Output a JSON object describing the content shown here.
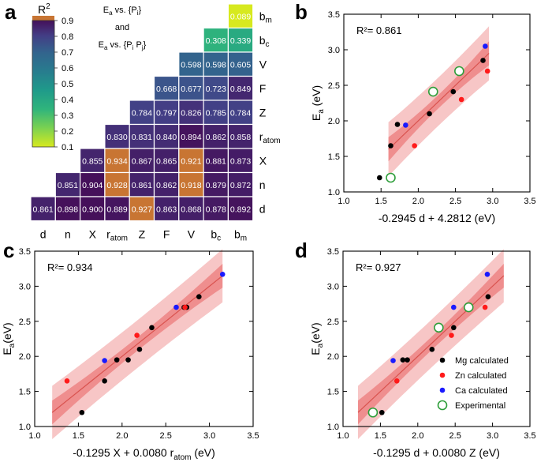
{
  "colors": {
    "heat_low": "#440154",
    "heat_mid": "#21918c",
    "heat_high": "#fde725",
    "highlight": "#c87533",
    "band_outer": "#f7c6c6",
    "band_inner": "#ef8e8e",
    "fit_line": "#d9534f",
    "mg": "#000000",
    "zn": "#ff1a1a",
    "ca": "#1a1aff",
    "exp": "#2e9e3a"
  },
  "panel_a": {
    "label": "a",
    "colorbar_title": "R",
    "colorbar_title_sup": "2",
    "colorbar_ticks": [
      "0.9",
      "0.8",
      "0.7",
      "0.6",
      "0.5",
      "0.4",
      "0.3",
      "0.2",
      "0.1"
    ],
    "legend_line1": {
      "a": "E",
      "a_sub": "a",
      "b": " vs. {P",
      "b_sub": "i",
      "c": "}"
    },
    "legend_and": "and",
    "legend_line3": {
      "a": "E",
      "a_sub": "a",
      "b": " vs. {P",
      "b_sub": "i",
      "c": " P",
      "c_sub": "j",
      "d": "}"
    },
    "chart_data": {
      "type": "heatmap",
      "title": "",
      "descriptors": [
        "d",
        "n",
        "X",
        "r_atom",
        "Z",
        "F",
        "V",
        "b_c",
        "b_m"
      ],
      "x_tick_labels": [
        {
          "t": "d"
        },
        {
          "t": "n"
        },
        {
          "t": "X"
        },
        {
          "t": "r",
          "s": "atom"
        },
        {
          "t": "Z"
        },
        {
          "t": "F"
        },
        {
          "t": "V"
        },
        {
          "t": "b",
          "s": "c"
        },
        {
          "t": "b",
          "s": "m"
        }
      ],
      "y_tick_labels": [
        {
          "t": "b",
          "s": "m"
        },
        {
          "t": "b",
          "s": "c"
        },
        {
          "t": "V"
        },
        {
          "t": "F"
        },
        {
          "t": "Z"
        },
        {
          "t": "r",
          "s": "atom"
        },
        {
          "t": "X"
        },
        {
          "t": "n"
        },
        {
          "t": "d"
        }
      ],
      "colorbar_range": [
        0.1,
        0.9
      ],
      "rows": [
        [
          "",
          "",
          "",
          "",
          "",
          "",
          "",
          "",
          "0.089"
        ],
        [
          "",
          "",
          "",
          "",
          "",
          "",
          "",
          "0.308",
          "0.339"
        ],
        [
          "",
          "",
          "",
          "",
          "",
          "",
          "0.598",
          "0.598",
          "0.605"
        ],
        [
          "",
          "",
          "",
          "",
          "",
          "0.668",
          "0.677",
          "0.723",
          "0.849"
        ],
        [
          "",
          "",
          "",
          "",
          "0.784",
          "0.797",
          "0.826",
          "0.785",
          "0.784"
        ],
        [
          "",
          "",
          "",
          "0.830",
          "0.831",
          "0.840",
          "0.894",
          "0.862",
          "0.858"
        ],
        [
          "",
          "",
          "0.855",
          "0.934",
          "0.867",
          "0.865",
          "0.921",
          "0.881",
          "0.873"
        ],
        [
          "",
          "0.851",
          "0.904",
          "0.928",
          "0.861",
          "0.862",
          "0.918",
          "0.879",
          "0.872"
        ],
        [
          "0.861",
          "0.898",
          "0.900",
          "0.889",
          "0.927",
          "0.863",
          "0.868",
          "0.878",
          "0.892"
        ]
      ],
      "highlighted": [
        [
          6,
          3
        ],
        [
          6,
          6
        ],
        [
          7,
          3
        ],
        [
          7,
          6
        ],
        [
          8,
          4
        ]
      ]
    }
  },
  "scatter_panels": [
    {
      "label": "b",
      "r2": "R²= 0.861",
      "ylabel_main": "E",
      "ylabel_sub": "a",
      "ylabel_unit": " (eV)",
      "xlabel": "-0.2945 d + 4.2812 (eV)",
      "x_ticks": [
        "1.0",
        "1.5",
        "2.0",
        "2.5",
        "3.0",
        "3.5"
      ],
      "y_ticks": [
        "1.0",
        "1.5",
        "2.0",
        "2.5",
        "3.0",
        "3.5"
      ],
      "chart_data": {
        "type": "scatter",
        "xlim": [
          1.0,
          3.5
        ],
        "ylim": [
          1.0,
          3.5
        ],
        "fit": {
          "x": [
            1.6,
            2.95
          ],
          "y": [
            1.6,
            2.95
          ]
        },
        "series": [
          {
            "name": "Mg calculated",
            "points": [
              [
                1.48,
                1.2
              ],
              [
                1.63,
                1.65
              ],
              [
                1.72,
                1.95
              ],
              [
                2.15,
                2.1
              ],
              [
                2.47,
                2.41
              ],
              [
                2.87,
                2.85
              ]
            ]
          },
          {
            "name": "Zn calculated",
            "points": [
              [
                1.95,
                1.65
              ],
              [
                2.58,
                2.3
              ],
              [
                2.93,
                2.7
              ]
            ]
          },
          {
            "name": "Ca calculated",
            "points": [
              [
                1.83,
                1.94
              ],
              [
                2.9,
                3.05
              ]
            ]
          },
          {
            "name": "Experimental",
            "points": [
              [
                1.63,
                1.2
              ],
              [
                2.2,
                2.41
              ],
              [
                2.55,
                2.7
              ]
            ]
          }
        ]
      }
    },
    {
      "label": "c",
      "r2": "R²= 0.934",
      "ylabel_main": "E",
      "ylabel_sub": "a",
      "ylabel_unit": "(eV)",
      "xlabel": "-0.1295 X + 0.0080 r",
      "xlabel_sub": "atom",
      "xlabel_unit": " (eV)",
      "x_ticks": [
        "1.0",
        "1.5",
        "2.0",
        "2.5",
        "3.0",
        "3.5"
      ],
      "y_ticks": [
        "1.0",
        "1.5",
        "2.0",
        "2.5",
        "3.0",
        "3.5"
      ],
      "chart_data": {
        "type": "scatter",
        "xlim": [
          1.0,
          3.5
        ],
        "ylim": [
          1.0,
          3.5
        ],
        "fit": {
          "x": [
            1.2,
            3.15
          ],
          "y": [
            1.2,
            3.15
          ]
        },
        "series": [
          {
            "name": "Mg calculated",
            "points": [
              [
                1.54,
                1.2
              ],
              [
                1.8,
                1.65
              ],
              [
                1.94,
                1.95
              ],
              [
                2.07,
                1.95
              ],
              [
                2.2,
                2.1
              ],
              [
                2.34,
                2.41
              ],
              [
                2.71,
                2.7
              ],
              [
                2.74,
                2.7
              ],
              [
                2.88,
                2.85
              ]
            ]
          },
          {
            "name": "Zn calculated",
            "points": [
              [
                1.37,
                1.65
              ],
              [
                2.17,
                2.3
              ],
              [
                2.72,
                2.7
              ]
            ]
          },
          {
            "name": "Ca calculated",
            "points": [
              [
                1.8,
                1.94
              ],
              [
                2.62,
                2.7
              ],
              [
                3.15,
                3.17
              ]
            ]
          },
          {
            "name": "Experimental",
            "points": []
          }
        ]
      }
    },
    {
      "label": "d",
      "r2": "R²= 0.927",
      "ylabel_main": "E",
      "ylabel_sub": "a",
      "ylabel_unit": "(eV)",
      "xlabel": "-0.1295 d + 0.0080 Z (eV)",
      "x_ticks": [
        "1.0",
        "1.5",
        "2.0",
        "2.5",
        "3.0",
        "3.5"
      ],
      "y_ticks": [
        "1.0",
        "1.5",
        "2.0",
        "2.5",
        "3.0",
        "3.5"
      ],
      "legend": [
        "Mg calculated",
        "Zn calculated",
        "Ca calculated",
        "Experimental"
      ],
      "chart_data": {
        "type": "scatter",
        "xlim": [
          1.0,
          3.5
        ],
        "ylim": [
          1.0,
          3.5
        ],
        "fit": {
          "x": [
            1.2,
            3.15
          ],
          "y": [
            1.2,
            3.15
          ]
        },
        "series": [
          {
            "name": "Mg calculated",
            "points": [
              [
                1.52,
                1.2
              ],
              [
                1.8,
                1.95
              ],
              [
                1.86,
                1.95
              ],
              [
                2.19,
                2.1
              ],
              [
                2.48,
                2.41
              ],
              [
                2.94,
                2.85
              ]
            ]
          },
          {
            "name": "Zn calculated",
            "points": [
              [
                1.72,
                1.65
              ],
              [
                2.45,
                2.3
              ],
              [
                2.9,
                2.7
              ]
            ]
          },
          {
            "name": "Ca calculated",
            "points": [
              [
                1.67,
                1.94
              ],
              [
                2.48,
                2.7
              ],
              [
                2.93,
                3.17
              ]
            ]
          },
          {
            "name": "Experimental",
            "points": [
              [
                1.4,
                1.2
              ],
              [
                2.28,
                2.41
              ],
              [
                2.68,
                2.7
              ]
            ]
          }
        ]
      }
    }
  ]
}
